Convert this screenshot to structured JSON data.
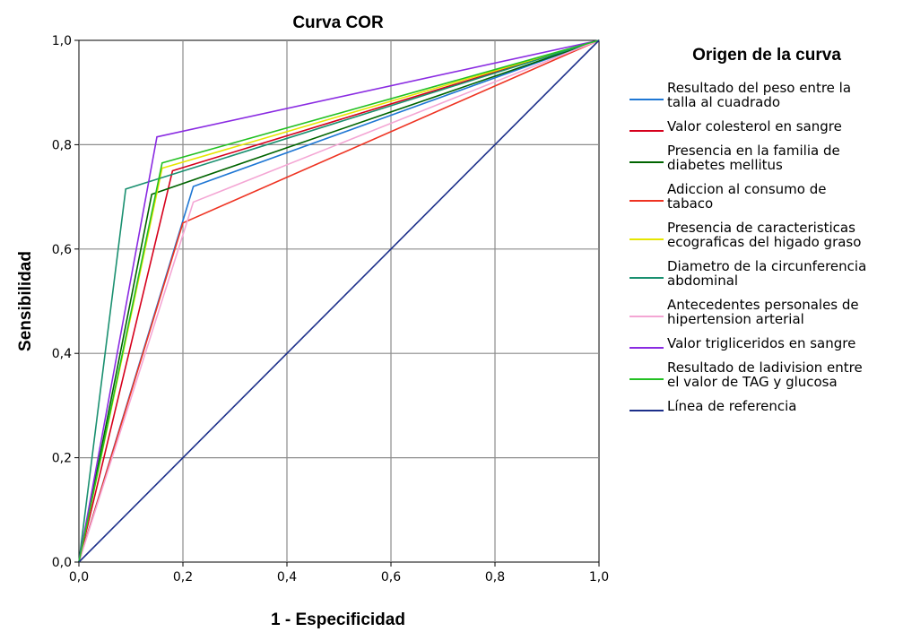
{
  "chart_data": {
    "type": "line",
    "title": "Curva COR",
    "xlabel": "1 - Especificidad",
    "ylabel": "Sensibilidad",
    "xlim": [
      0,
      1
    ],
    "ylim": [
      0,
      1
    ],
    "x_ticks": [
      "0,0",
      "0,2",
      "0,4",
      "0,6",
      "0,8",
      "1,0"
    ],
    "y_ticks": [
      "0,0",
      "0,2",
      "0,4",
      "0,6",
      "0,8",
      "1,0"
    ],
    "grid": true,
    "legend": {
      "title": "Origen de la curva",
      "position": "right"
    },
    "series": [
      {
        "name": [
          "Resultado del peso entre la",
          "talla al cuadrado"
        ],
        "color": "#1f77d4",
        "points": [
          [
            0,
            0
          ],
          [
            0.22,
            0.72
          ],
          [
            1,
            1
          ]
        ]
      },
      {
        "name": [
          "Valor colesterol en sangre"
        ],
        "color": "#d6001c",
        "points": [
          [
            0,
            0
          ],
          [
            0.18,
            0.75
          ],
          [
            1,
            1
          ]
        ]
      },
      {
        "name": [
          "Presencia en la familia de",
          "diabetes mellitus"
        ],
        "color": "#006400",
        "points": [
          [
            0,
            0
          ],
          [
            0.14,
            0.705
          ],
          [
            1,
            1
          ]
        ]
      },
      {
        "name": [
          "Adiccion al consumo de",
          "tabaco"
        ],
        "color": "#ee3322",
        "points": [
          [
            0,
            0
          ],
          [
            0.2,
            0.65
          ],
          [
            1,
            1
          ]
        ]
      },
      {
        "name": [
          "Presencia de caracteristicas",
          "ecograficas del higado graso"
        ],
        "color": "#e6e600",
        "points": [
          [
            0,
            0
          ],
          [
            0.16,
            0.755
          ],
          [
            1,
            1
          ]
        ]
      },
      {
        "name": [
          "Diametro de la circunferencia",
          "abdominal"
        ],
        "color": "#1a9070",
        "points": [
          [
            0,
            0
          ],
          [
            0.09,
            0.715
          ],
          [
            1,
            1
          ]
        ]
      },
      {
        "name": [
          "Antecedentes personales de",
          "hipertension arterial"
        ],
        "color": "#f4a6d4",
        "points": [
          [
            0,
            0
          ],
          [
            0.22,
            0.69
          ],
          [
            1,
            1
          ]
        ]
      },
      {
        "name": [
          "Valor trigliceridos en sangre"
        ],
        "color": "#8a2be2",
        "points": [
          [
            0,
            0
          ],
          [
            0.15,
            0.815
          ],
          [
            1,
            1
          ]
        ]
      },
      {
        "name": [
          "Resultado de ladivision entre",
          "el valor de TAG y glucosa"
        ],
        "color": "#22c022",
        "points": [
          [
            0,
            0
          ],
          [
            0.16,
            0.765
          ],
          [
            1,
            1
          ]
        ]
      },
      {
        "name": [
          "Línea de referencia"
        ],
        "color": "#1c2f8a",
        "points": [
          [
            0,
            0
          ],
          [
            1,
            1
          ]
        ]
      }
    ]
  }
}
